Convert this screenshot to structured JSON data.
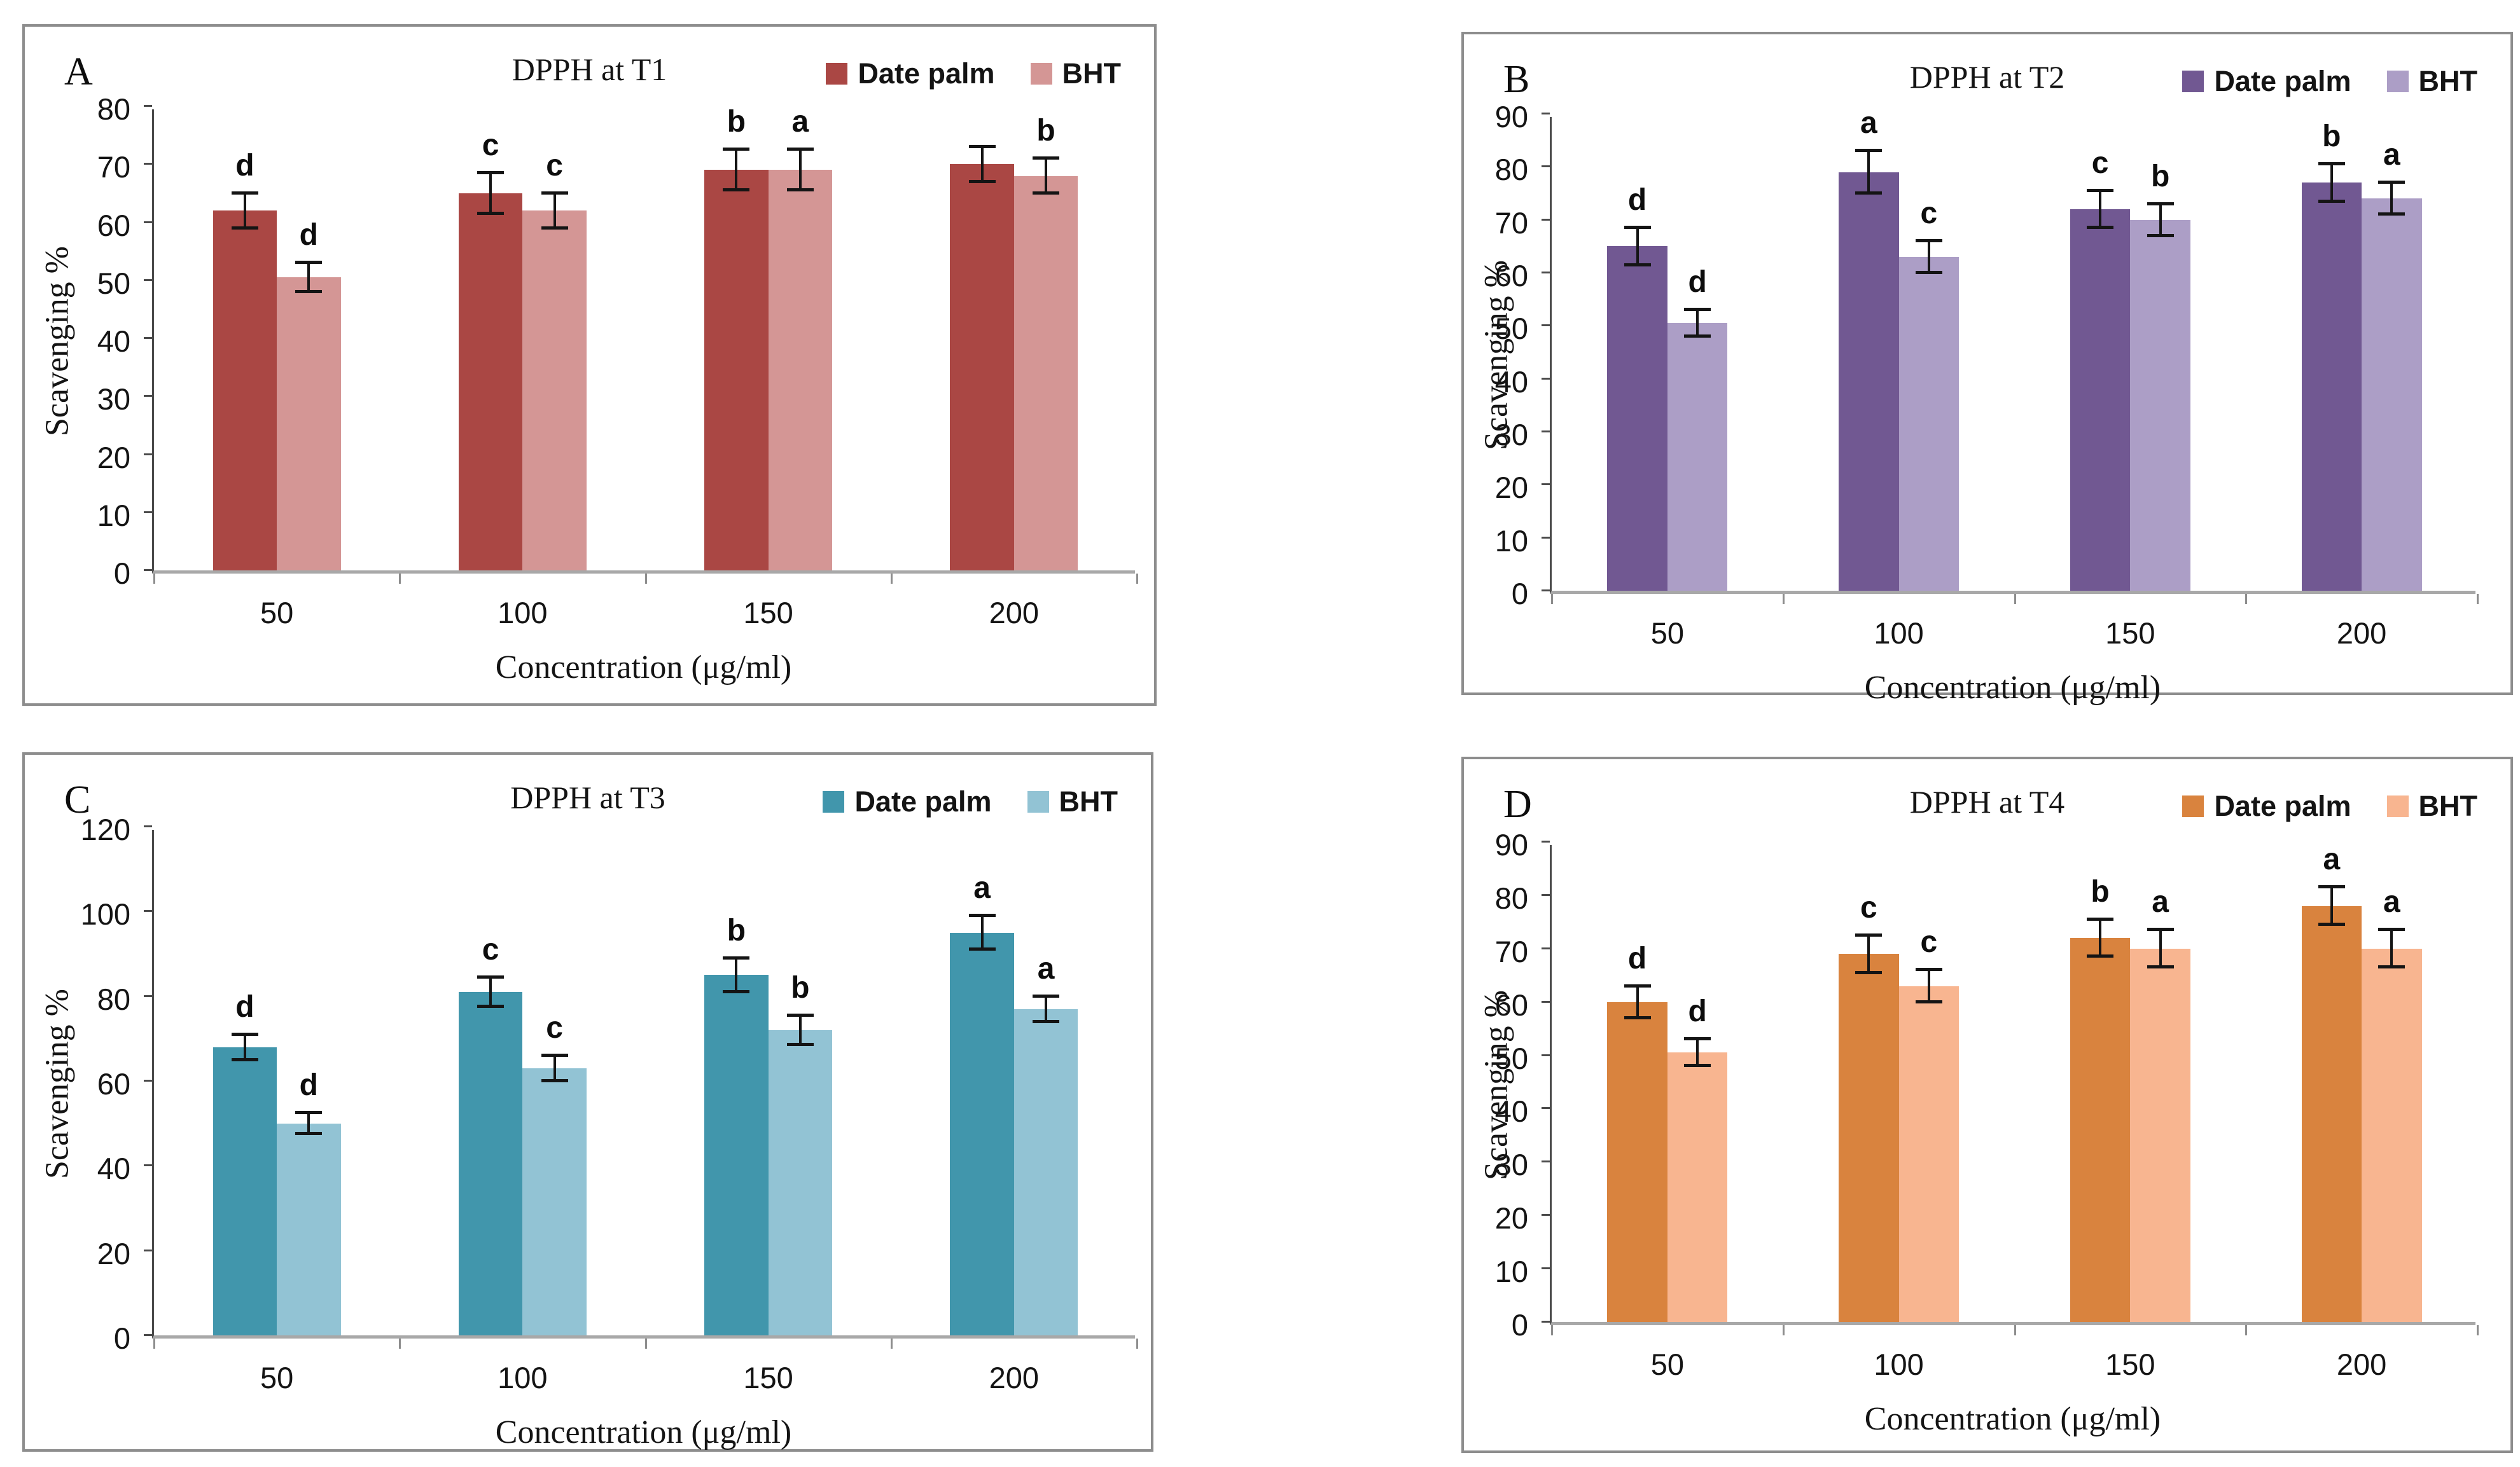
{
  "figure": {
    "panels": [
      "A",
      "B",
      "C",
      "D"
    ],
    "x_axis_title": "Concentration (μg/ml)",
    "y_axis_title": "Scavenging %",
    "series_labels": [
      "Date palm",
      "BHT"
    ]
  },
  "chart_data": [
    {
      "panel": "A",
      "type": "bar",
      "title": "DPPH at T1",
      "xlabel": "Concentration (μg/ml)",
      "ylabel": "Scavenging %",
      "categories": [
        "50",
        "100",
        "150",
        "200"
      ],
      "ylim": [
        0,
        80
      ],
      "ytick_step": 10,
      "grid": false,
      "legend_position": "top-right",
      "colors": [
        "#AA4744",
        "#D49695"
      ],
      "series": [
        {
          "name": "Date palm",
          "values": [
            62,
            65,
            69,
            70
          ],
          "errors": [
            3,
            3.5,
            3.5,
            3
          ],
          "letters": [
            "d",
            "c",
            "b",
            ""
          ]
        },
        {
          "name": "BHT",
          "values": [
            50.5,
            62,
            69,
            68
          ],
          "errors": [
            2.5,
            3,
            3.5,
            3
          ],
          "letters": [
            "d",
            "c",
            "a",
            "b"
          ]
        }
      ]
    },
    {
      "panel": "B",
      "type": "bar",
      "title": "DPPH at T2",
      "xlabel": "Concentration (μg/ml)",
      "ylabel": "Scavenging %",
      "categories": [
        "50",
        "100",
        "150",
        "200"
      ],
      "ylim": [
        0,
        90
      ],
      "ytick_step": 10,
      "grid": false,
      "legend_position": "top-right",
      "colors": [
        "#715892",
        "#AC9EC6"
      ],
      "series": [
        {
          "name": "Date palm",
          "values": [
            65,
            79,
            72,
            77
          ],
          "errors": [
            3.5,
            4,
            3.5,
            3.5
          ],
          "letters": [
            "d",
            "a",
            "c",
            "b"
          ]
        },
        {
          "name": "BHT",
          "values": [
            50.5,
            63,
            70,
            74
          ],
          "errors": [
            2.5,
            3,
            3,
            3
          ],
          "letters": [
            "d",
            "c",
            "b",
            "a"
          ]
        }
      ]
    },
    {
      "panel": "C",
      "type": "bar",
      "title": "DPPH at T3",
      "xlabel": "Concentration (μg/ml)",
      "ylabel": "Scavenging %",
      "categories": [
        "50",
        "100",
        "150",
        "200"
      ],
      "ylim": [
        0,
        120
      ],
      "ytick_step": 20,
      "grid": false,
      "legend_position": "top-right",
      "colors": [
        "#4196AC",
        "#92C3D4"
      ],
      "series": [
        {
          "name": "Date palm",
          "values": [
            68,
            81,
            85,
            95
          ],
          "errors": [
            3,
            3.5,
            4,
            4
          ],
          "letters": [
            "d",
            "c",
            "b",
            "a"
          ]
        },
        {
          "name": "BHT",
          "values": [
            50,
            63,
            72,
            77
          ],
          "errors": [
            2.5,
            3,
            3.5,
            3
          ],
          "letters": [
            "d",
            "c",
            "b",
            "a"
          ]
        }
      ]
    },
    {
      "panel": "D",
      "type": "bar",
      "title": "DPPH at T4",
      "xlabel": "Concentration (μg/ml)",
      "ylabel": "Scavenging %",
      "categories": [
        "50",
        "100",
        "150",
        "200"
      ],
      "ylim": [
        0,
        90
      ],
      "ytick_step": 10,
      "grid": false,
      "legend_position": "top-right",
      "colors": [
        "#D9833E",
        "#F8B590"
      ],
      "series": [
        {
          "name": "Date palm",
          "values": [
            60,
            69,
            72,
            78
          ],
          "errors": [
            3,
            3.5,
            3.5,
            3.5
          ],
          "letters": [
            "d",
            "c",
            "b",
            "a"
          ]
        },
        {
          "name": "BHT",
          "values": [
            50.5,
            63,
            70,
            70
          ],
          "errors": [
            2.5,
            3,
            3.5,
            3.5
          ],
          "letters": [
            "d",
            "c",
            "a",
            "a"
          ]
        }
      ]
    }
  ]
}
